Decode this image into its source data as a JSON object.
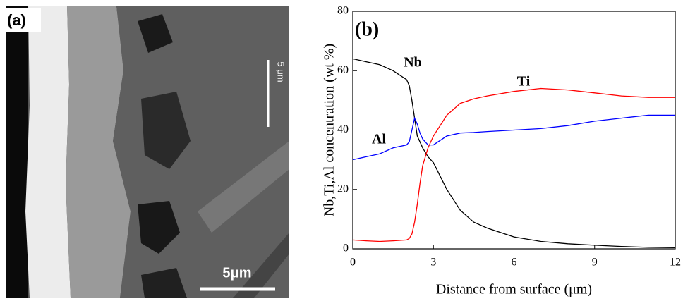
{
  "panel_a": {
    "label": "(a)",
    "scale_bar": "5μm",
    "scale_bar_rotated": "5 μm"
  },
  "chart_data": {
    "type": "line",
    "title": "(b)",
    "x_label": "Distance from surface (μm)",
    "y_label": "Nb,Ti,Al concentration (wt %)",
    "x": [
      0,
      0.5,
      1,
      1.5,
      2,
      2.1,
      2.2,
      2.3,
      2.4,
      2.5,
      2.6,
      2.8,
      3,
      3.5,
      4,
      4.5,
      5,
      6,
      7,
      8,
      9,
      10,
      11,
      12
    ],
    "series": [
      {
        "name": "Nb",
        "color": "#000000",
        "values": [
          64,
          63,
          62,
          60,
          57,
          55,
          50,
          44,
          38,
          36,
          34,
          31,
          29,
          20,
          13,
          9,
          7,
          4,
          2.5,
          1.7,
          1.2,
          0.8,
          0.5,
          0.4
        ]
      },
      {
        "name": "Ti",
        "color": "#ff0000",
        "values": [
          3,
          2.7,
          2.5,
          2.7,
          3,
          3.5,
          5,
          9,
          15,
          22,
          28,
          34,
          38,
          45,
          49,
          50.5,
          51.5,
          53,
          54,
          53.5,
          52.5,
          51.5,
          51,
          51
        ]
      },
      {
        "name": "Al",
        "color": "#0000ff",
        "values": [
          30,
          31,
          32,
          34,
          35,
          36,
          40,
          44,
          42,
          39,
          37,
          35,
          35,
          38,
          39,
          39.2,
          39.5,
          40,
          40.5,
          41.5,
          43,
          44,
          45,
          45
        ]
      }
    ],
    "xlim": [
      0,
      12
    ],
    "xticks": [
      0,
      3,
      6,
      9,
      12
    ],
    "ylim": [
      0,
      80
    ],
    "yticks": [
      0,
      20,
      40,
      60,
      80
    ]
  }
}
